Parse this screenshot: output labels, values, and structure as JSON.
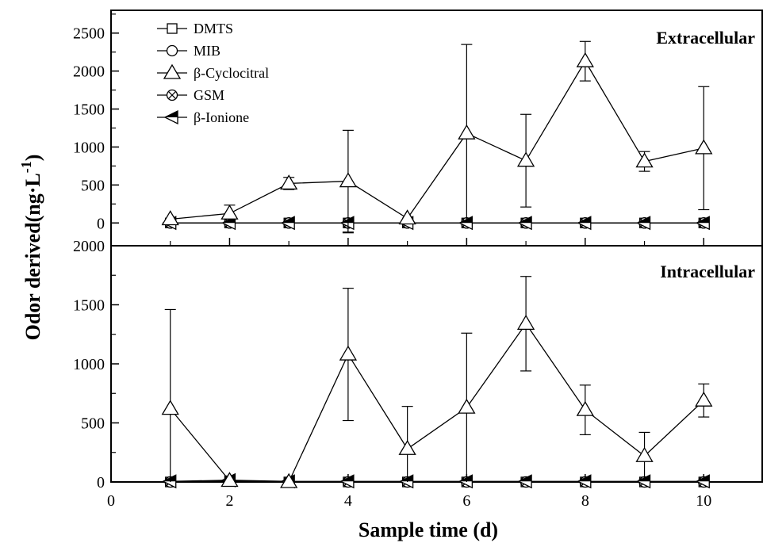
{
  "chart_data": {
    "type": "line",
    "ylabel": "Odor derived(ng·L",
    "ylabel_superscript": "-1",
    "ylabel_suffix": ")",
    "xlabel": "Sample time (d)",
    "xlim": [
      0,
      11
    ],
    "x_ticks": [
      0,
      2,
      4,
      6,
      8,
      10
    ],
    "legend": {
      "placement": "top-left",
      "entries": [
        {
          "label": "DMTS",
          "marker": "square"
        },
        {
          "label": "MIB",
          "marker": "circle"
        },
        {
          "label": "β-Cyclocitral",
          "marker": "triangle"
        },
        {
          "label": "GSM",
          "marker": "circle-cross"
        },
        {
          "label": "β-Ionione",
          "marker": "left-triangle-half"
        }
      ]
    },
    "panels": [
      {
        "name": "Extracellular",
        "ylim": [
          -300,
          2800
        ],
        "y_ticks": [
          0,
          500,
          1000,
          1500,
          2000,
          2500
        ],
        "series": [
          {
            "name": "β-Cyclocitral",
            "marker": "triangle",
            "x": [
              1,
              2,
              3,
              4,
              5,
              6,
              7,
              8,
              9,
              10
            ],
            "y": [
              50,
              125,
              520,
              550,
              60,
              1180,
              820,
              2130,
              810,
              985
            ],
            "err": [
              0,
              110,
              80,
              670,
              0,
              1170,
              610,
              260,
              130,
              810
            ]
          },
          {
            "name": "DMTS",
            "marker": "square",
            "x": [
              1,
              2,
              3,
              4,
              5,
              6,
              7,
              8,
              9,
              10
            ],
            "y": [
              0,
              0,
              0,
              0,
              0,
              0,
              0,
              0,
              0,
              0
            ],
            "err_down": [
              0,
              0,
              0,
              130,
              0,
              0,
              0,
              0,
              0,
              0
            ]
          },
          {
            "name": "MIB",
            "marker": "circle",
            "x": [
              1,
              2,
              3,
              4,
              5,
              6,
              7,
              8,
              9,
              10
            ],
            "y": [
              0,
              0,
              0,
              0,
              0,
              0,
              0,
              0,
              0,
              0
            ]
          },
          {
            "name": "GSM",
            "marker": "circle-cross",
            "x": [
              1,
              2,
              3,
              4,
              5,
              6,
              7,
              8,
              9,
              10
            ],
            "y": [
              0,
              0,
              0,
              0,
              0,
              0,
              0,
              0,
              0,
              0
            ]
          },
          {
            "name": "β-Ionione",
            "marker": "left-triangle-half",
            "x": [
              1,
              2,
              3,
              4,
              5,
              6,
              7,
              8,
              9,
              10
            ],
            "y": [
              0,
              0,
              0,
              0,
              0,
              0,
              0,
              0,
              0,
              0
            ]
          }
        ]
      },
      {
        "name": "Intracellular",
        "ylim": [
          0,
          2000
        ],
        "y_ticks": [
          0,
          500,
          1000,
          1500,
          2000
        ],
        "series": [
          {
            "name": "β-Cyclocitral",
            "marker": "triangle",
            "x": [
              1,
              2,
              3,
              4,
              5,
              6,
              7,
              8,
              9,
              10
            ],
            "y": [
              620,
              10,
              0,
              1080,
              280,
              630,
              1340,
              610,
              220,
              690
            ],
            "err": [
              840,
              0,
              0,
              560,
              360,
              630,
              400,
              210,
              200,
              140
            ]
          },
          {
            "name": "DMTS",
            "marker": "square",
            "x": [
              1,
              2,
              3,
              4,
              5,
              6,
              7,
              8,
              9,
              10
            ],
            "y": [
              0,
              10,
              0,
              0,
              0,
              0,
              0,
              0,
              0,
              0
            ]
          },
          {
            "name": "MIB",
            "marker": "circle",
            "x": [
              1,
              2,
              3,
              4,
              5,
              6,
              7,
              8,
              9,
              10
            ],
            "y": [
              0,
              10,
              0,
              0,
              0,
              0,
              0,
              0,
              0,
              0
            ]
          },
          {
            "name": "GSM",
            "marker": "circle-cross",
            "x": [
              1,
              2,
              3,
              4,
              5,
              6,
              7,
              8,
              9,
              10
            ],
            "y": [
              0,
              10,
              0,
              0,
              0,
              0,
              0,
              0,
              0,
              0
            ]
          },
          {
            "name": "β-Ionione",
            "marker": "left-triangle-half",
            "x": [
              1,
              2,
              3,
              4,
              5,
              6,
              7,
              8,
              9,
              10
            ],
            "y": [
              5,
              15,
              5,
              5,
              5,
              5,
              5,
              5,
              5,
              5
            ]
          }
        ]
      }
    ]
  }
}
